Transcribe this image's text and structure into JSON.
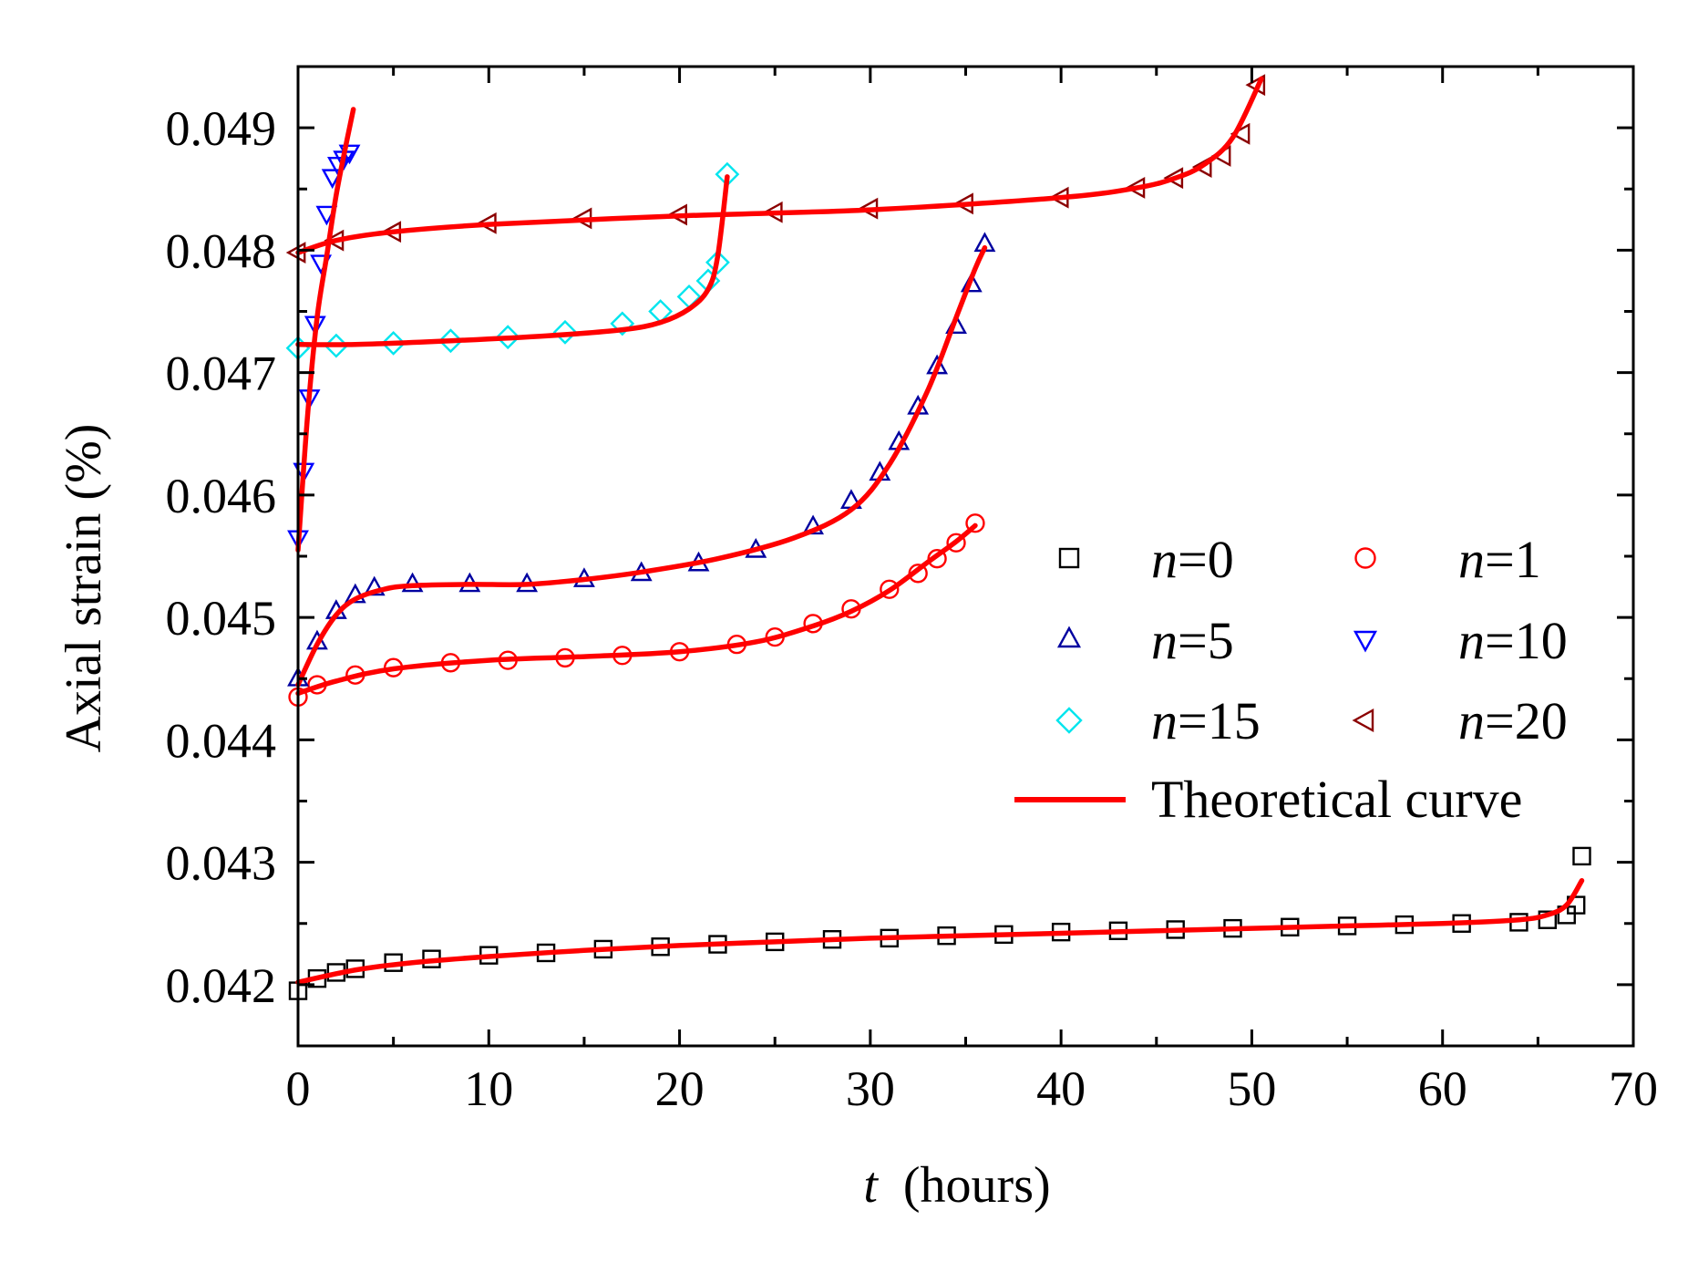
{
  "chart_data": {
    "type": "scatter",
    "xlabel_var": "t",
    "xlabel_unit": "(hours)",
    "ylabel": "Axial strain (%)",
    "xlim": [
      0,
      70
    ],
    "ylim": [
      0.0415,
      0.0495
    ],
    "x_ticks": [
      0,
      10,
      20,
      30,
      40,
      50,
      60,
      70
    ],
    "x_tick_labels": [
      "0",
      "10",
      "20",
      "30",
      "40",
      "50",
      "60",
      "70"
    ],
    "y_ticks": [
      0.042,
      0.043,
      0.044,
      0.045,
      0.046,
      0.047,
      0.048,
      0.049
    ],
    "y_tick_labels": [
      "0.042",
      "0.043",
      "0.044",
      "0.045",
      "0.046",
      "0.047",
      "0.048",
      "0.049"
    ],
    "series": [
      {
        "name": "n=0",
        "prefix": "n",
        "suffix": "=0",
        "marker": "square",
        "color": "#000000",
        "x": [
          0,
          1,
          2,
          3,
          5,
          7,
          10,
          13,
          16,
          19,
          22,
          25,
          28,
          31,
          34,
          37,
          40,
          43,
          46,
          49,
          52,
          55,
          58,
          61,
          64,
          65.5,
          66.5,
          67,
          67.3
        ],
        "y": [
          0.04195,
          0.04205,
          0.0421,
          0.04213,
          0.04218,
          0.04221,
          0.04224,
          0.04226,
          0.04229,
          0.04231,
          0.04233,
          0.04235,
          0.04237,
          0.04238,
          0.0424,
          0.04241,
          0.04243,
          0.04244,
          0.04245,
          0.04246,
          0.04247,
          0.04248,
          0.04249,
          0.0425,
          0.04251,
          0.04253,
          0.04257,
          0.04265,
          0.04305
        ]
      },
      {
        "name": "n=1",
        "prefix": "n",
        "suffix": "=1",
        "marker": "circle",
        "color": "#ff0000",
        "x": [
          0,
          1,
          3,
          5,
          8,
          11,
          14,
          17,
          20,
          23,
          25,
          27,
          29,
          31,
          32.5,
          33.5,
          34.5,
          35.5
        ],
        "y": [
          0.04435,
          0.04445,
          0.04453,
          0.04459,
          0.04463,
          0.04465,
          0.04467,
          0.04469,
          0.04472,
          0.04478,
          0.04484,
          0.04495,
          0.04507,
          0.04523,
          0.04536,
          0.04548,
          0.04561,
          0.04577
        ]
      },
      {
        "name": "n=5",
        "prefix": "n",
        "suffix": "=5",
        "marker": "triangle-up",
        "color": "#0000a0",
        "x": [
          0,
          1,
          2,
          3,
          4,
          6,
          9,
          12,
          15,
          18,
          21,
          24,
          27,
          29,
          30.5,
          31.5,
          32.5,
          33.5,
          34.5,
          35.3,
          36
        ],
        "y": [
          0.0445,
          0.0448,
          0.04505,
          0.04518,
          0.04524,
          0.04527,
          0.04527,
          0.04527,
          0.04531,
          0.04536,
          0.04544,
          0.04555,
          0.04574,
          0.04595,
          0.04618,
          0.04643,
          0.04672,
          0.04705,
          0.04738,
          0.04772,
          0.04805
        ]
      },
      {
        "name": "n=10",
        "prefix": "n",
        "suffix": "=10",
        "marker": "triangle-down",
        "color": "#0000ff",
        "x": [
          0,
          0.3,
          0.6,
          0.9,
          1.2,
          1.5,
          1.8,
          2.1,
          2.4,
          2.7
        ],
        "y": [
          0.04565,
          0.0462,
          0.0468,
          0.0474,
          0.0479,
          0.0483,
          0.0486,
          0.0487,
          0.04875,
          0.0488
        ]
      },
      {
        "name": "n=15",
        "prefix": "n",
        "suffix": "=15",
        "marker": "diamond",
        "color": "#00e5ee",
        "x": [
          0,
          2,
          5,
          8,
          11,
          14,
          17,
          19,
          20.5,
          21.5,
          22,
          22.5
        ],
        "y": [
          0.0472,
          0.04722,
          0.04724,
          0.04726,
          0.04729,
          0.04733,
          0.0474,
          0.0475,
          0.04762,
          0.04775,
          0.0479,
          0.04862
        ]
      },
      {
        "name": "n=20",
        "prefix": "n",
        "suffix": "=20",
        "marker": "triangle-left",
        "color": "#8b0000",
        "x": [
          0,
          2,
          5,
          10,
          15,
          20,
          25,
          30,
          35,
          40,
          44,
          46,
          47.5,
          48.5,
          49.5,
          50.3
        ],
        "y": [
          0.04798,
          0.04808,
          0.04815,
          0.04822,
          0.04826,
          0.04829,
          0.04831,
          0.04834,
          0.04838,
          0.04843,
          0.04851,
          0.04859,
          0.04868,
          0.04877,
          0.04895,
          0.04935
        ]
      }
    ],
    "theoretical_curves": {
      "name": "Theoretical curve",
      "color": "#ff0000",
      "curves": [
        {
          "x": [
            0,
            3,
            6,
            10,
            15,
            20,
            25,
            30,
            35,
            40,
            45,
            50,
            55,
            60,
            64,
            65.5,
            66.5,
            67.3
          ],
          "y": [
            0.04202,
            0.04212,
            0.04218,
            0.04223,
            0.04228,
            0.04232,
            0.04235,
            0.04238,
            0.0424,
            0.04242,
            0.04244,
            0.04246,
            0.04248,
            0.0425,
            0.04253,
            0.04257,
            0.04265,
            0.04285
          ]
        },
        {
          "x": [
            0,
            2,
            5,
            10,
            15,
            20,
            24,
            27,
            29,
            31,
            33,
            34.5,
            35.5
          ],
          "y": [
            0.04438,
            0.04448,
            0.04458,
            0.04465,
            0.04468,
            0.04472,
            0.0448,
            0.04493,
            0.04505,
            0.04522,
            0.04545,
            0.04562,
            0.04575
          ]
        },
        {
          "x": [
            0,
            1,
            2,
            3,
            4.5,
            6,
            9,
            12,
            15,
            18,
            22,
            26,
            29,
            31,
            33,
            34.5,
            35.5,
            36
          ],
          "y": [
            0.04445,
            0.04478,
            0.04502,
            0.04515,
            0.04523,
            0.04526,
            0.04527,
            0.04527,
            0.04531,
            0.04537,
            0.04548,
            0.04565,
            0.04588,
            0.04625,
            0.04685,
            0.04745,
            0.04785,
            0.04802
          ]
        },
        {
          "x": [
            0,
            0.5,
            1,
            1.5,
            2,
            2.5,
            2.9
          ],
          "y": [
            0.04555,
            0.04665,
            0.04745,
            0.04795,
            0.04845,
            0.04885,
            0.04915
          ]
        },
        {
          "x": [
            0,
            3,
            8,
            13,
            17,
            19,
            20.5,
            21.5,
            22,
            22.5
          ],
          "y": [
            0.04723,
            0.04723,
            0.04726,
            0.0473,
            0.04735,
            0.04741,
            0.04752,
            0.04768,
            0.04795,
            0.0486
          ]
        },
        {
          "x": [
            0,
            2,
            5,
            10,
            20,
            30,
            40,
            44,
            46,
            47.5,
            49,
            50.5
          ],
          "y": [
            0.04798,
            0.04808,
            0.04815,
            0.04821,
            0.04828,
            0.04833,
            0.04843,
            0.04851,
            0.04859,
            0.0487,
            0.04892,
            0.0494
          ]
        }
      ]
    },
    "legend_position": "right"
  }
}
